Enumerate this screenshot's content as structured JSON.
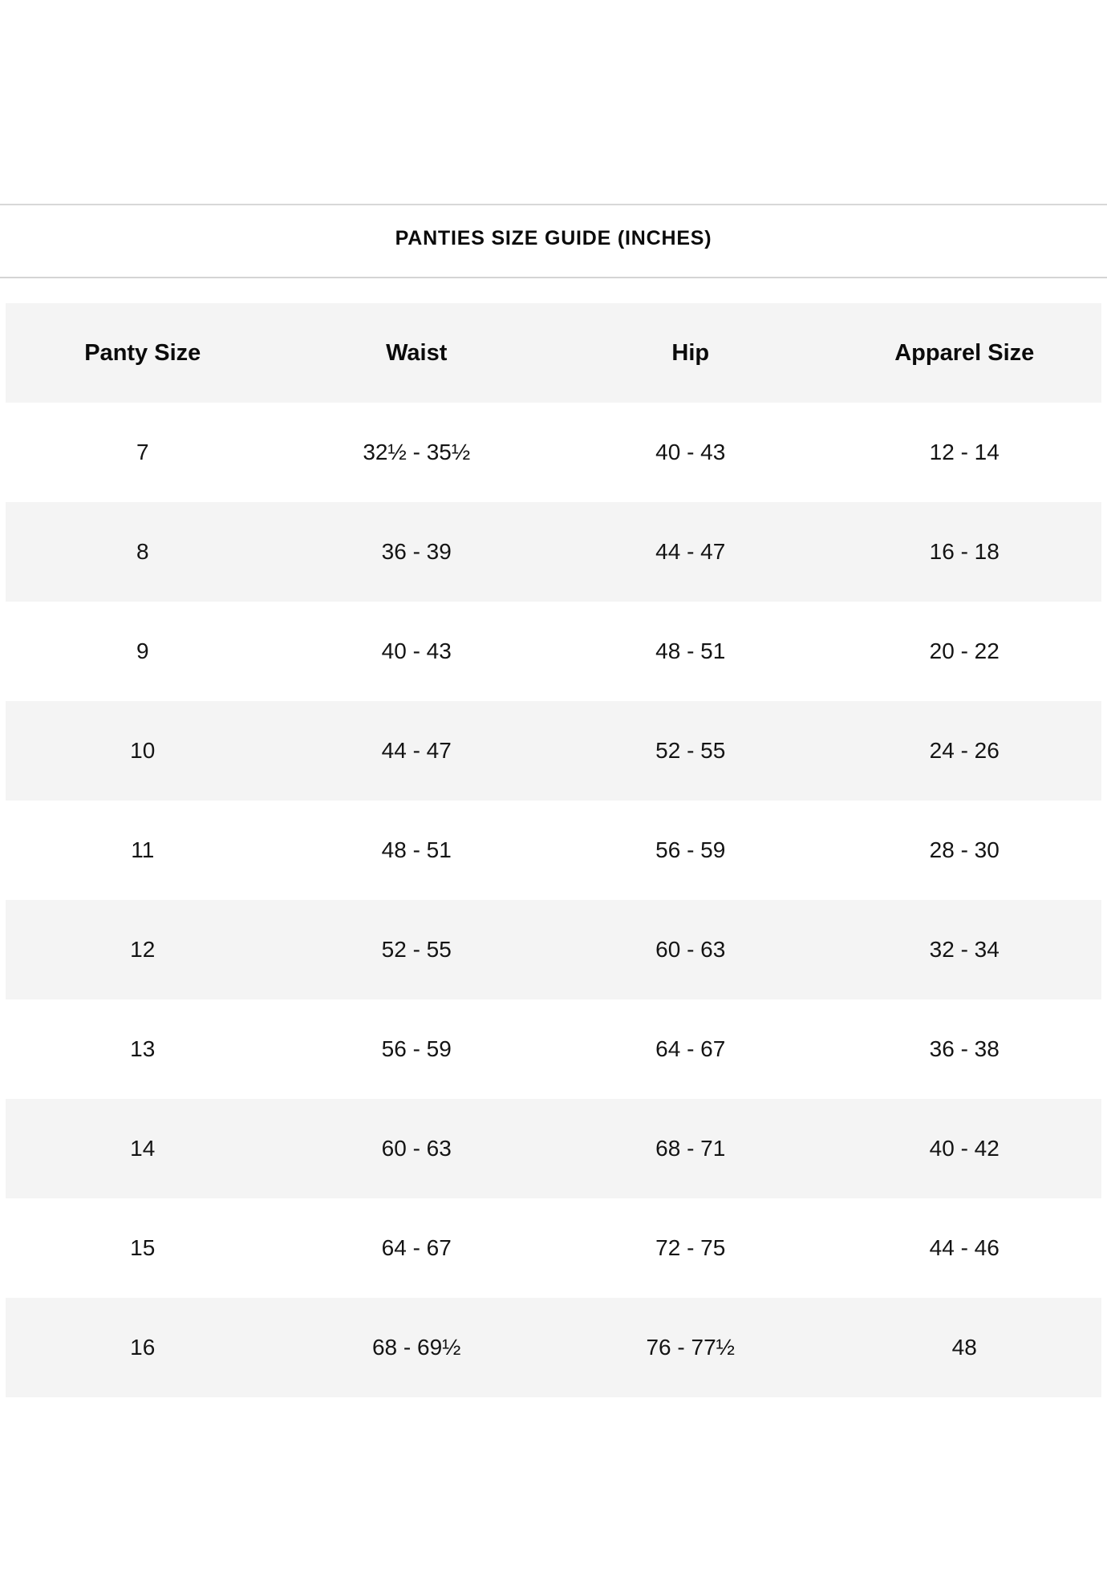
{
  "title": "PANTIES SIZE GUIDE (INCHES)",
  "colors": {
    "background": "#ffffff",
    "stripe": "#f4f4f4",
    "divider": "#d8d8d8",
    "text": "#111111"
  },
  "table": {
    "columns": [
      "Panty Size",
      "Waist",
      "Hip",
      "Apparel Size"
    ],
    "rows": [
      [
        "7",
        "32½ - 35½",
        "40 - 43",
        "12 - 14"
      ],
      [
        "8",
        "36 - 39",
        "44 - 47",
        "16 - 18"
      ],
      [
        "9",
        "40 - 43",
        "48 - 51",
        "20 - 22"
      ],
      [
        "10",
        "44 - 47",
        "52 - 55",
        "24 - 26"
      ],
      [
        "11",
        "48 - 51",
        "56 - 59",
        "28 - 30"
      ],
      [
        "12",
        "52 - 55",
        "60 - 63",
        "32 - 34"
      ],
      [
        "13",
        "56 - 59",
        "64 - 67",
        "36 - 38"
      ],
      [
        "14",
        "60 - 63",
        "68 - 71",
        "40 - 42"
      ],
      [
        "15",
        "64 - 67",
        "72 - 75",
        "44 - 46"
      ],
      [
        "16",
        "68 - 69½",
        "76 - 77½",
        "48"
      ]
    ]
  }
}
